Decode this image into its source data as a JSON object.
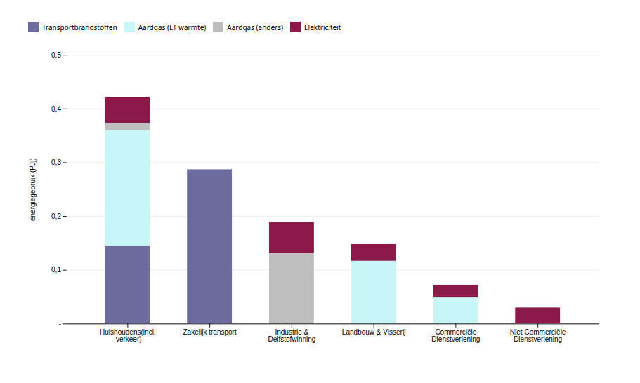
{
  "chart_data": {
    "type": "bar",
    "stacked": true,
    "categories": [
      "Huishoudens(incl.\n verkeer)",
      "Zakelijk transport",
      "Industrie &\nDelfstofwinning",
      "Landbouw & Visserij",
      "Commerciële\nDienstverlening",
      "Niet Commerciële\nDienstverlening"
    ],
    "series": [
      {
        "name": "Transportbrandstoffen",
        "color": "#6B6B9E",
        "values": [
          0.145,
          0.287,
          0.0,
          0.0,
          0.0,
          0.0
        ]
      },
      {
        "name": "Aardgas (LT warmte)",
        "color": "#C8F5F5",
        "values": [
          0.215,
          0.0,
          0.0,
          0.117,
          0.048,
          0.0
        ]
      },
      {
        "name": "Aardgas (anders)",
        "color": "#BEBEBE",
        "values": [
          0.013,
          0.0,
          0.132,
          0.0,
          0.002,
          0.0
        ]
      },
      {
        "name": "Elektriciteit",
        "color": "#8B1A4A",
        "values": [
          0.049,
          0.0,
          0.057,
          0.031,
          0.022,
          0.03
        ]
      }
    ],
    "ylabel": "energiegebruik (PJj)",
    "ylim": [
      0,
      0.5
    ],
    "yticks": [
      {
        "value": 0.0,
        "label": "-"
      },
      {
        "value": 0.1,
        "label": "0,1"
      },
      {
        "value": 0.2,
        "label": "0,2"
      },
      {
        "value": 0.3,
        "label": "0,3"
      },
      {
        "value": 0.4,
        "label": "0,4"
      },
      {
        "value": 0.5,
        "label": "0,5"
      }
    ],
    "grid": true,
    "legend": "top"
  }
}
